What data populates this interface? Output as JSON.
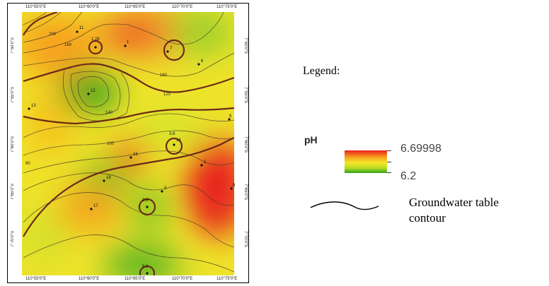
{
  "map": {
    "x_ticks": [
      "110°55'0\"E",
      "110°60'0\"E",
      "110°65'0\"E",
      "110°70'0\"E",
      "110°75'0\"E"
    ],
    "y_ticks_left": [
      "7°50'0\"S",
      "7°55'0\"S",
      "7°60'0\"S",
      "7°65'0\"S",
      "7°70'0\"S"
    ],
    "y_ticks_right": [
      "7°50'0\"S",
      "7°55'0\"S",
      "7°60'0\"S",
      "7°65'0\"S",
      "7°70'0\"S"
    ],
    "contour_labels": [
      "200",
      "180",
      "160",
      "140",
      "120",
      "100",
      "80"
    ],
    "well_labels": [
      "11",
      "1.28",
      "1",
      "7",
      "6",
      "12",
      "13",
      "5",
      "3.8",
      "14",
      "16",
      "2",
      "18",
      "3",
      "17",
      "3.8",
      "9",
      "5.0"
    ],
    "colors": {
      "high_ph": "#e8201c",
      "mid_high": "#f7a21e",
      "mid": "#f5e72a",
      "mid_low": "#b9dc22",
      "low_ph": "#2ea11e",
      "contour": "#6b2a1a"
    }
  },
  "legend": {
    "title": "Legend:",
    "ph_label": "pH",
    "ph_max": "6.69998",
    "ph_min": "6.2",
    "contour_label_line1": "Groundwater table",
    "contour_label_line2": "contour"
  }
}
